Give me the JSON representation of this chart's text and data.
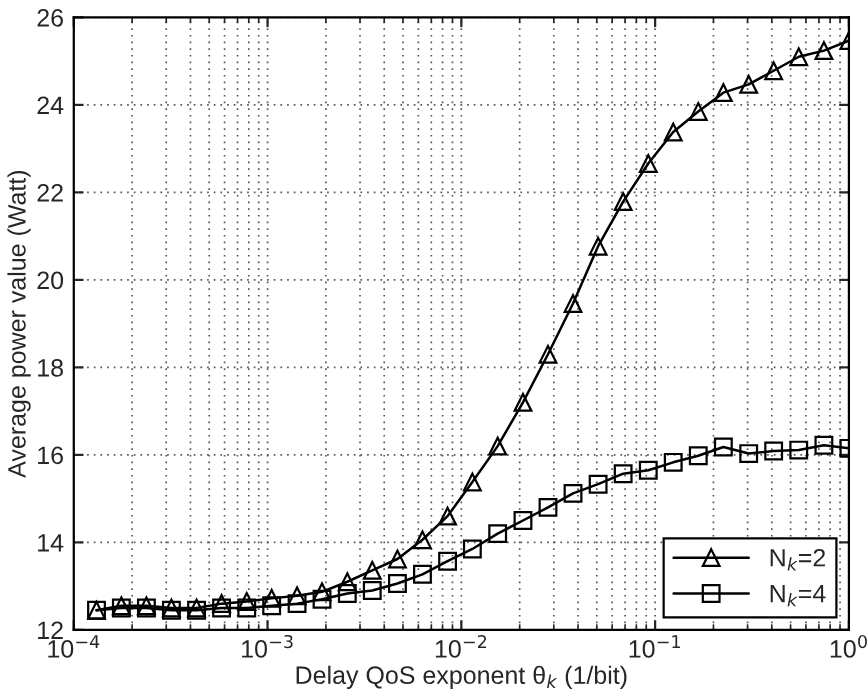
{
  "chart_data": {
    "type": "line",
    "xlabel": "Delay QoS exponent θ$_{k}$ (1/bit)",
    "ylabel": "Average power value (Watt)",
    "x": [
      0.000131,
      0.000176,
      0.000237,
      0.000319,
      0.00043,
      0.000579,
      0.000781,
      0.00105,
      0.00142,
      0.00191,
      0.00258,
      0.00347,
      0.00468,
      0.0063,
      0.00849,
      0.0114,
      0.0154,
      0.0208,
      0.028,
      0.0377,
      0.0508,
      0.0684,
      0.0922,
      0.124,
      0.167,
      0.225,
      0.304,
      0.409,
      0.551,
      0.743,
      1
    ],
    "series": [
      {
        "name": "N$_{k}$=2",
        "color": "#000000",
        "marker": "triangle",
        "values": [
          12.45,
          12.55,
          12.55,
          12.5,
          12.5,
          12.6,
          12.65,
          12.72,
          12.78,
          12.87,
          13.1,
          13.36,
          13.62,
          14.06,
          14.6,
          15.38,
          16.2,
          17.2,
          18.3,
          19.46,
          20.77,
          21.79,
          22.66,
          23.38,
          23.85,
          24.28,
          24.47,
          24.78,
          25.1,
          25.24,
          25.47
        ]
      },
      {
        "name": "N$_{k}$=4",
        "color": "#000000",
        "marker": "square",
        "values": [
          12.45,
          12.5,
          12.5,
          12.45,
          12.45,
          12.5,
          12.5,
          12.55,
          12.6,
          12.7,
          12.83,
          12.9,
          13.06,
          13.27,
          13.57,
          13.85,
          14.2,
          14.5,
          14.8,
          15.12,
          15.33,
          15.57,
          15.65,
          15.83,
          15.98,
          16.18,
          16.03,
          16.09,
          16.11,
          16.22,
          16.15
        ]
      }
    ],
    "log": "x",
    "xlim": [
      0.0001,
      1
    ],
    "xticks": [
      {
        "value": 0.0001,
        "label": "10$^{−4}$"
      },
      {
        "value": 0.001,
        "label": "10$^{−3}$"
      },
      {
        "value": 0.01,
        "label": "10$^{−2}$"
      },
      {
        "value": 0.1,
        "label": "10$^{−1}$"
      },
      {
        "value": 1,
        "label": "10$^{0}$"
      }
    ],
    "ylim": [
      12,
      26
    ],
    "yticks": [
      12,
      14,
      16,
      18,
      20,
      22,
      24,
      26
    ],
    "grid": true,
    "legend": "bottom right",
    "line_style": "solid"
  }
}
